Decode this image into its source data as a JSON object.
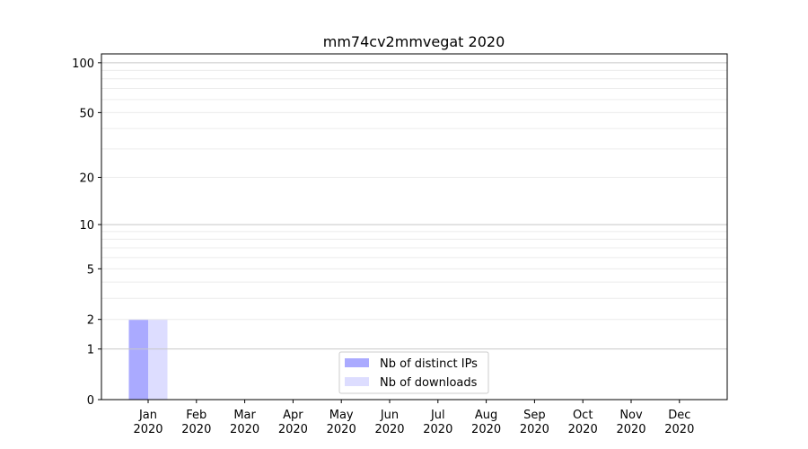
{
  "chart_data": {
    "type": "bar",
    "title": "mm74cv2mmvegat 2020",
    "xlabel": "",
    "ylabel": "",
    "yscale": "log(1+y)",
    "ylim": [
      0,
      113
    ],
    "yticks": [
      0,
      1,
      2,
      5,
      10,
      20,
      50,
      100
    ],
    "grid": true,
    "legend_position": "bottom-center",
    "categories": [
      "Jan\n2020",
      "Feb\n2020",
      "Mar\n2020",
      "Apr\n2020",
      "May\n2020",
      "Jun\n2020",
      "Jul\n2020",
      "Aug\n2020",
      "Sep\n2020",
      "Oct\n2020",
      "Nov\n2020",
      "Dec\n2020"
    ],
    "series": [
      {
        "name": "Nb of distinct IPs",
        "color": "#aaaaff",
        "values": [
          2,
          0,
          0,
          0,
          0,
          0,
          0,
          0,
          0,
          0,
          0,
          0
        ]
      },
      {
        "name": "Nb of downloads",
        "color": "#ddddff",
        "values": [
          2,
          0,
          0,
          0,
          0,
          0,
          0,
          0,
          0,
          0,
          0,
          0
        ]
      }
    ]
  }
}
